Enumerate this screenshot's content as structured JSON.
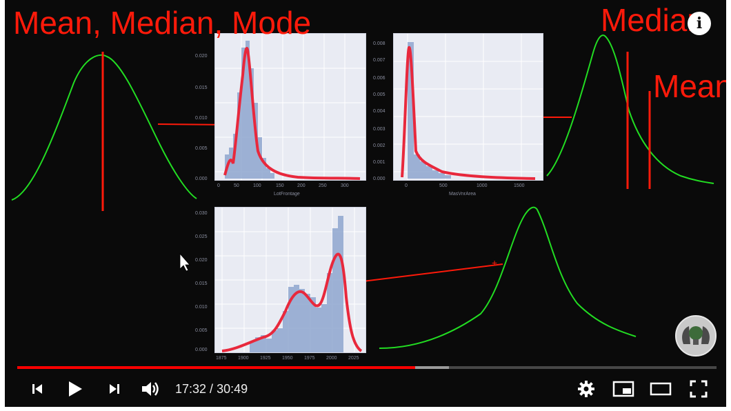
{
  "overlay": {
    "title": "Mean, Median, Mode",
    "median_label": "Median",
    "mean_label": "Mean"
  },
  "hist_top_left": {
    "xlabel": "LotFrontage",
    "x_ticks": [
      "0",
      "50",
      "100",
      "150",
      "200",
      "250",
      "300"
    ],
    "y_ticks": [
      "0.000",
      "0.005",
      "0.010",
      "0.015",
      "0.020"
    ]
  },
  "hist_top_right": {
    "xlabel": "MasVnrArea",
    "x_ticks": [
      "0",
      "500",
      "1000",
      "1500"
    ],
    "y_ticks": [
      "0.000",
      "0.001",
      "0.002",
      "0.003",
      "0.004",
      "0.005",
      "0.006",
      "0.007",
      "0.008"
    ]
  },
  "hist_bottom": {
    "x_ticks": [
      "1875",
      "1900",
      "1925",
      "1950",
      "1975",
      "2000",
      "2025"
    ],
    "y_ticks": [
      "0.000",
      "0.005",
      "0.010",
      "0.015",
      "0.020",
      "0.025",
      "0.030"
    ]
  },
  "player": {
    "current_time": "17:32",
    "separator": " / ",
    "duration": "30:49",
    "played_fraction": 0.569,
    "buffered_fraction": 0.617
  },
  "colors": {
    "annotation_red": "#ff1a0a",
    "curve_green": "#22dd22",
    "kde_red": "#e8283c",
    "bar_blue": "#8fa6cf",
    "progress_red": "#ff0000"
  },
  "icons": {
    "previous": "skip-previous-icon",
    "play": "play-icon",
    "next": "skip-next-icon",
    "volume": "volume-icon",
    "settings": "gear-icon",
    "miniplayer": "miniplayer-icon",
    "theater": "theater-mode-icon",
    "fullscreen": "fullscreen-icon",
    "info": "info-icon"
  }
}
